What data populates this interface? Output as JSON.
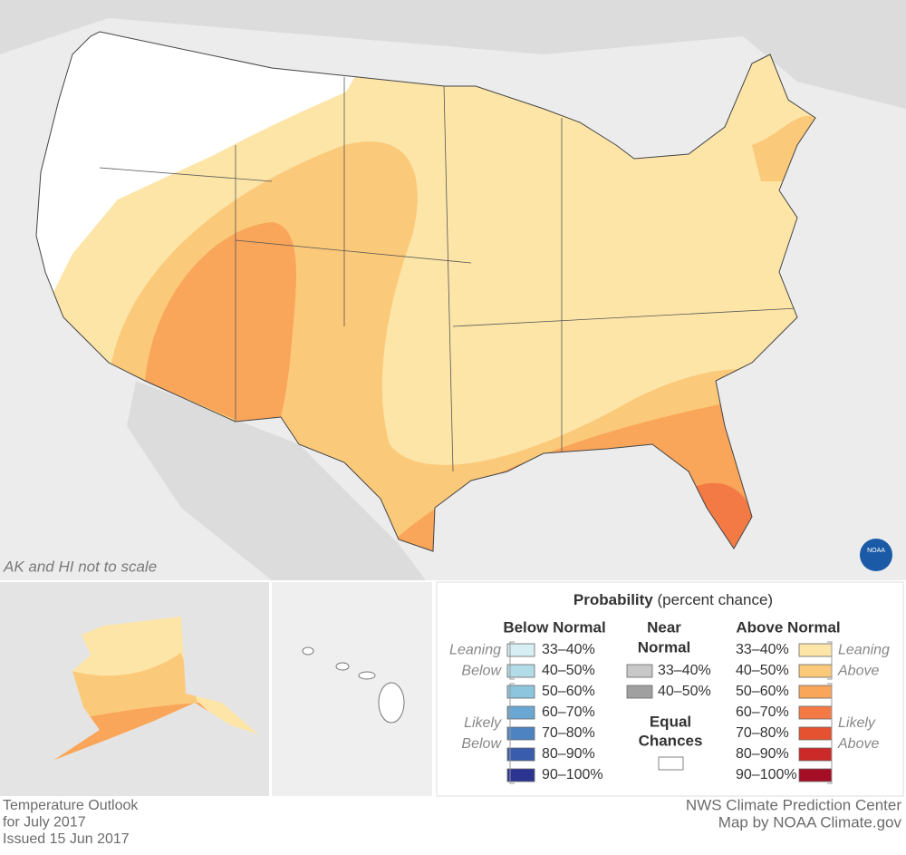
{
  "map": {
    "note": "AK and HI not to scale",
    "logo": "NOAA"
  },
  "legend": {
    "title": "Probability",
    "subtitle": "(percent chance)",
    "below": {
      "heading": [
        "Below Normal"
      ],
      "items": [
        {
          "label": "33–40%",
          "color": "#d7eef4"
        },
        {
          "label": "40–50%",
          "color": "#b3dce9"
        },
        {
          "label": "50–60%",
          "color": "#8dc5de"
        },
        {
          "label": "60–70%",
          "color": "#6aa8d3"
        },
        {
          "label": "70–80%",
          "color": "#4d83c0"
        },
        {
          "label": "80–90%",
          "color": "#3a5cad"
        },
        {
          "label": "90–100%",
          "color": "#2b3591"
        }
      ],
      "groups": [
        [
          "Leaning",
          "Below"
        ],
        [
          "Likely",
          "Below"
        ]
      ]
    },
    "near": {
      "heading": [
        "Near",
        "Normal"
      ],
      "items": [
        {
          "label": "33–40%",
          "color": "#c8c8c8"
        },
        {
          "label": "40–50%",
          "color": "#a0a0a0"
        }
      ]
    },
    "equal": {
      "heading": [
        "Equal",
        "Chances"
      ],
      "color": "#ffffff"
    },
    "above": {
      "heading": [
        "Above Normal"
      ],
      "items": [
        {
          "label": "33–40%",
          "color": "#fde5a8"
        },
        {
          "label": "40–50%",
          "color": "#fbc97a"
        },
        {
          "label": "50–60%",
          "color": "#f9a55a"
        },
        {
          "label": "60–70%",
          "color": "#f47a45"
        },
        {
          "label": "70–80%",
          "color": "#e5522f"
        },
        {
          "label": "80–90%",
          "color": "#cc2a28"
        },
        {
          "label": "90–100%",
          "color": "#a50f26"
        }
      ],
      "groups": [
        [
          "Leaning",
          "Above"
        ],
        [
          "Likely",
          "Above"
        ]
      ]
    }
  },
  "footer": {
    "left": [
      "Temperature Outlook",
      "for July 2017",
      "Issued 15 Jun 2017"
    ],
    "right": [
      "NWS Climate Prediction Center",
      "Map by NOAA Climate.gov"
    ]
  }
}
